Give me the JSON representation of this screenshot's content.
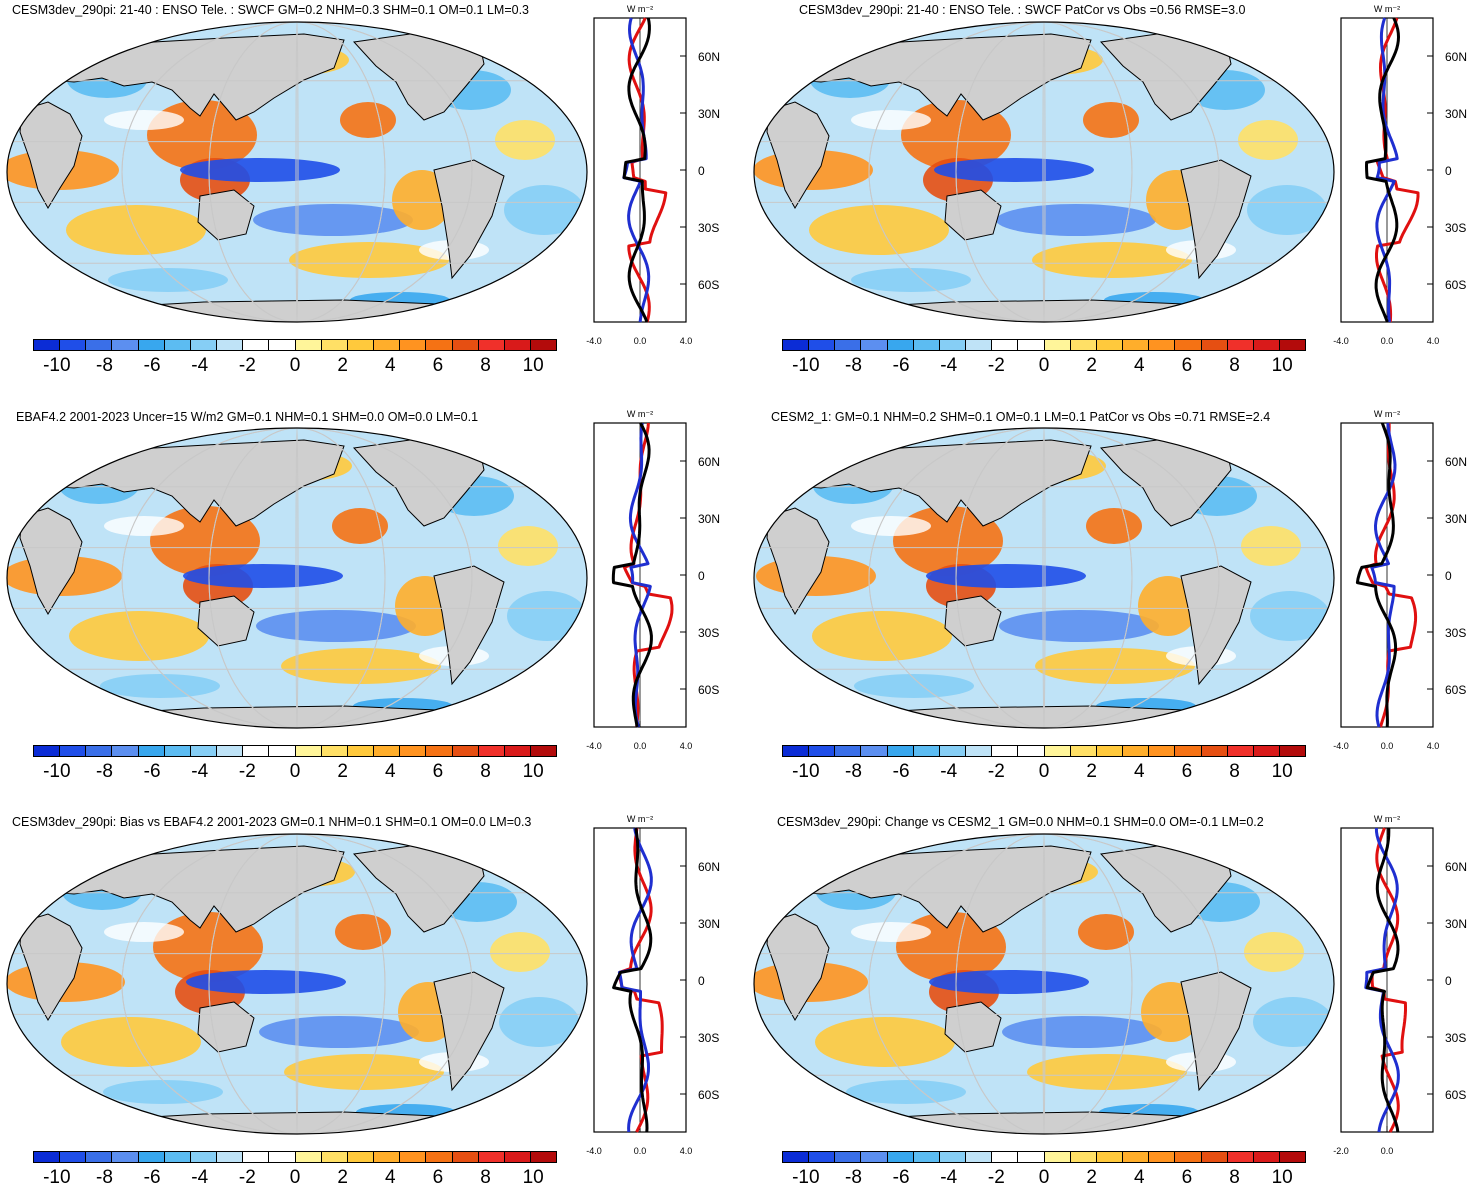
{
  "figure": {
    "colorbar_labels": [
      "-10",
      "-8",
      "-6",
      "-4",
      "-2",
      "0",
      "2",
      "4",
      "6",
      "8",
      "10"
    ],
    "colorbar_colors": [
      "#0b2cd6",
      "#1f4ee8",
      "#3a6fe8",
      "#5c8ff0",
      "#38a7ee",
      "#5cbcf2",
      "#86cef5",
      "#bfe3f7",
      "#ffffff",
      "#ffffff",
      "#fff59a",
      "#ffe066",
      "#ffc93c",
      "#ffae2b",
      "#ff9320",
      "#f57214",
      "#e64f12",
      "#f0302a",
      "#d91a1a",
      "#b30b0b"
    ],
    "zonal_units": "W m⁻²",
    "series_colors": {
      "model": "#1f2fd0",
      "obs": "#e01010",
      "other": "#000000"
    }
  },
  "panels": [
    {
      "title": "CESM3dev_290pi: 21-40 : ENSO Tele. : SWCF GM=0.2 NHM=0.3 SHM=0.1 OM=0.1 LM=0.3",
      "lat_ticks": [
        "60N",
        "30N",
        "0",
        "30S",
        "60S"
      ],
      "x_ticks": [
        "-4.0",
        "0.0",
        "4.0"
      ],
      "x_range": [
        -4,
        4
      ]
    },
    {
      "title": "CESM3dev_290pi: 21-40 : ENSO Tele. : SWCF PatCor vs Obs =0.56 RMSE=3.0",
      "lat_ticks": [
        "60N",
        "30N",
        "0",
        "30S",
        "60S"
      ],
      "x_ticks": [
        "-4.0",
        "0.0",
        "4.0"
      ],
      "x_range": [
        -4,
        4
      ]
    },
    {
      "title": "EBAF4.2 2001-2023 Uncer=15 W/m2 GM=0.1 NHM=0.1 SHM=0.0 OM=0.0 LM=0.1",
      "lat_ticks": [
        "60N",
        "30N",
        "0",
        "30S",
        "60S"
      ],
      "x_ticks": [
        "-4.0",
        "0.0",
        "4.0"
      ],
      "x_range": [
        -4,
        4
      ]
    },
    {
      "title": "CESM2_1: GM=0.1 NHM=0.2 SHM=0.1 OM=0.1 LM=0.1 PatCor vs Obs =0.71 RMSE=2.4",
      "lat_ticks": [
        "60N",
        "30N",
        "0",
        "30S",
        "60S"
      ],
      "x_ticks": [
        "-4.0",
        "0.0",
        "4.0"
      ],
      "x_range": [
        -4,
        4
      ]
    },
    {
      "title": "CESM3dev_290pi: Bias vs EBAF4.2 2001-2023 GM=0.1 NHM=0.1 SHM=0.1 OM=0.0 LM=0.3",
      "lat_ticks": [
        "60N",
        "30N",
        "0",
        "30S",
        "60S"
      ],
      "x_ticks": [
        "-4.0",
        "0.0",
        "4.0"
      ],
      "x_range": [
        -4,
        4
      ]
    },
    {
      "title": "CESM3dev_290pi: Change vs CESM2_1 GM=0.0 NHM=0.1 SHM=0.0 OM=-0.1 LM=0.2",
      "lat_ticks": [
        "60N",
        "30N",
        "0",
        "30S",
        "60S"
      ],
      "x_ticks": [
        "-2.0",
        "0.0"
      ],
      "x_range": [
        -2,
        2
      ]
    }
  ]
}
